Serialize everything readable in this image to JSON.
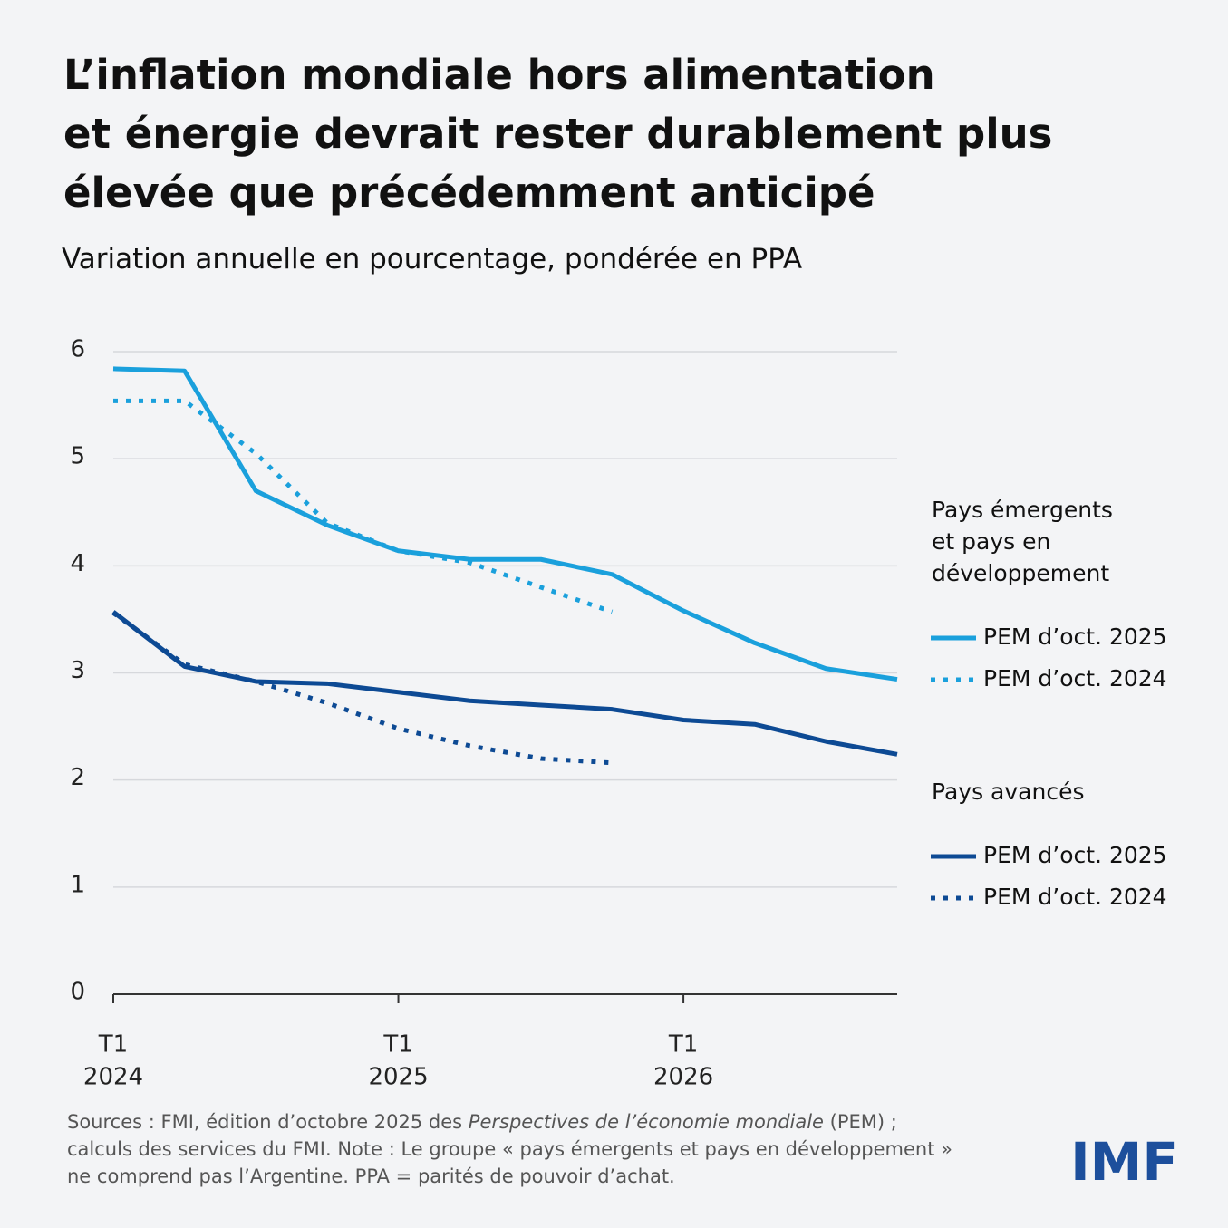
{
  "chart_data": {
    "type": "line",
    "title": [
      "L’inflation mondiale hors alimentation",
      "et énergie devrait rester durablement plus",
      "élevée que précédemment anticipé"
    ],
    "subtitle": "Variation annuelle en pourcentage, pondérée en PPA",
    "categories": [
      [
        "T1",
        "2024"
      ],
      null,
      null,
      null,
      [
        "T1",
        "2025"
      ],
      null,
      null,
      null,
      [
        "T1",
        "2026"
      ],
      null,
      null,
      null
    ],
    "ylim": [
      0,
      6
    ],
    "yticks": [
      0,
      1,
      2,
      3,
      4,
      5,
      6
    ],
    "grid": true,
    "legend_groups": [
      {
        "title": [
          "Pays émergents",
          "et pays en",
          "développement"
        ]
      },
      {
        "title": [
          "Pays avancés"
        ]
      }
    ],
    "series": [
      {
        "name": "PEM d’oct. 2025",
        "group": 0,
        "dashed": false,
        "color": "#1aa0dc",
        "values": [
          5.84,
          5.82,
          4.7,
          4.38,
          4.14,
          4.06,
          4.06,
          3.92,
          3.58,
          3.28,
          3.04,
          2.94
        ]
      },
      {
        "name": "PEM d’oct. 2024",
        "group": 0,
        "dashed": true,
        "color": "#1aa0dc",
        "values": [
          5.54,
          5.54,
          5.05,
          4.4,
          4.14,
          4.03,
          3.8,
          3.57,
          null,
          null,
          null,
          null
        ]
      },
      {
        "name": "PEM d’oct. 2025",
        "group": 1,
        "dashed": false,
        "color": "#0d4a94",
        "values": [
          3.57,
          3.06,
          2.92,
          2.9,
          2.82,
          2.74,
          2.7,
          2.66,
          2.56,
          2.52,
          2.36,
          2.24
        ]
      },
      {
        "name": "PEM d’oct. 2024",
        "group": 1,
        "dashed": true,
        "color": "#0d4a94",
        "values": [
          3.56,
          3.08,
          2.92,
          2.72,
          2.48,
          2.32,
          2.2,
          2.16,
          null,
          null,
          null,
          null
        ]
      }
    ],
    "source": [
      [
        "Sources : FMI, édition d’octobre 2025 des ",
        "Perspectives de l’économie mondiale",
        " (PEM) ;"
      ],
      [
        "calculs des services du FMI. Note : Le groupe « pays émergents et pays en développement »"
      ],
      [
        "ne comprend pas l’Argentine. PPA = parités de pouvoir d’achat."
      ]
    ],
    "logo": "IMF"
  }
}
